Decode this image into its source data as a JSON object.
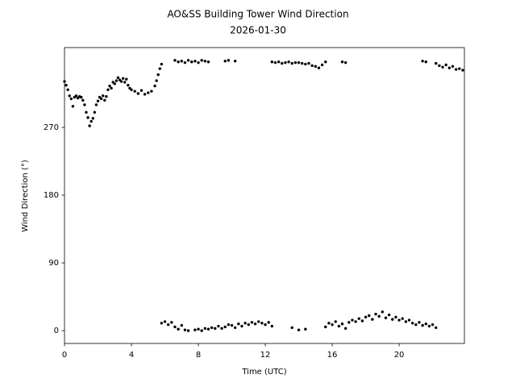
{
  "chart_data": {
    "type": "scatter",
    "title": "AO&SS Building Tower Wind Direction",
    "subtitle": "2026-01-30",
    "x_label": "Time (UTC)",
    "y_label": "Wind Direction (°)",
    "color": "#000000",
    "xlim": [
      0,
      23.9
    ],
    "ylim": [
      -17,
      376
    ],
    "xticks": [
      0,
      4,
      8,
      12,
      16,
      20
    ],
    "yticks": [
      0,
      90,
      180,
      270
    ],
    "x": [
      0.0,
      0.1,
      0.2,
      0.3,
      0.4,
      0.5,
      0.6,
      0.7,
      0.8,
      0.9,
      1.0,
      1.1,
      1.2,
      1.3,
      1.4,
      1.5,
      1.6,
      1.7,
      1.8,
      1.9,
      2.0,
      2.1,
      2.2,
      2.3,
      2.4,
      2.5,
      2.6,
      2.7,
      2.8,
      2.9,
      3.0,
      3.1,
      3.2,
      3.3,
      3.4,
      3.5,
      3.6,
      3.7,
      3.8,
      3.9,
      4.0,
      4.2,
      4.4,
      4.6,
      4.8,
      5.0,
      5.2,
      5.4,
      5.5,
      5.6,
      5.7,
      5.8,
      5.8,
      6.0,
      6.2,
      6.4,
      6.6,
      6.8,
      7.0,
      7.2,
      7.4,
      6.6,
      6.8,
      7.0,
      7.2,
      7.4,
      7.6,
      7.8,
      8.0,
      8.2,
      8.4,
      8.6,
      9.6,
      9.8,
      10.2,
      7.8,
      8.0,
      8.2,
      8.4,
      8.6,
      8.8,
      9.0,
      9.2,
      9.4,
      9.6,
      9.8,
      10.0,
      10.2,
      10.4,
      10.6,
      10.8,
      11.0,
      11.2,
      11.4,
      11.6,
      11.8,
      12.0,
      12.2,
      12.4,
      12.4,
      12.6,
      12.8,
      13.0,
      13.2,
      13.4,
      13.6,
      13.8,
      14.0,
      14.2,
      14.4,
      14.6,
      14.8,
      15.0,
      15.2,
      15.4,
      15.6,
      16.6,
      16.8,
      21.4,
      21.6,
      13.6,
      14.0,
      14.4,
      15.6,
      15.8,
      16.0,
      16.2,
      16.4,
      16.6,
      16.8,
      17.0,
      17.2,
      17.4,
      17.6,
      17.8,
      18.0,
      18.2,
      18.4,
      18.6,
      18.8,
      19.0,
      19.2,
      19.4,
      19.6,
      19.8,
      20.0,
      20.2,
      20.4,
      20.6,
      20.8,
      21.0,
      21.2,
      21.4,
      21.6,
      21.8,
      22.0,
      22.2,
      22.2,
      22.4,
      22.6,
      22.8,
      23.0,
      23.2,
      23.4,
      23.6,
      23.8
    ],
    "values": [
      331,
      326,
      320,
      312,
      308,
      298,
      310,
      312,
      309,
      311,
      310,
      306,
      300,
      290,
      283,
      272,
      278,
      282,
      290,
      300,
      305,
      310,
      308,
      312,
      306,
      311,
      320,
      325,
      322,
      330,
      328,
      332,
      336,
      333,
      331,
      335,
      330,
      334,
      326,
      322,
      320,
      318,
      315,
      319,
      314,
      316,
      318,
      325,
      332,
      340,
      348,
      354,
      10,
      12,
      8,
      11,
      5,
      2,
      7,
      1,
      0,
      359,
      357,
      358,
      356,
      359,
      357,
      358,
      356,
      359,
      358,
      357,
      358,
      359,
      358,
      1,
      2,
      0,
      3,
      2,
      4,
      3,
      6,
      3,
      5,
      8,
      7,
      4,
      9,
      6,
      10,
      8,
      11,
      9,
      12,
      10,
      8,
      11,
      6,
      357,
      356,
      357,
      355,
      356,
      357,
      355,
      356,
      356,
      355,
      354,
      355,
      352,
      351,
      349,
      353,
      357,
      357,
      356,
      358,
      357,
      4,
      1,
      2,
      5,
      10,
      8,
      12,
      6,
      9,
      3,
      11,
      14,
      12,
      16,
      13,
      18,
      20,
      15,
      22,
      19,
      25,
      17,
      21,
      15,
      18,
      14,
      16,
      12,
      14,
      10,
      8,
      11,
      7,
      9,
      6,
      8,
      4,
      355,
      352,
      350,
      353,
      349,
      351,
      347,
      348,
      346
    ]
  }
}
